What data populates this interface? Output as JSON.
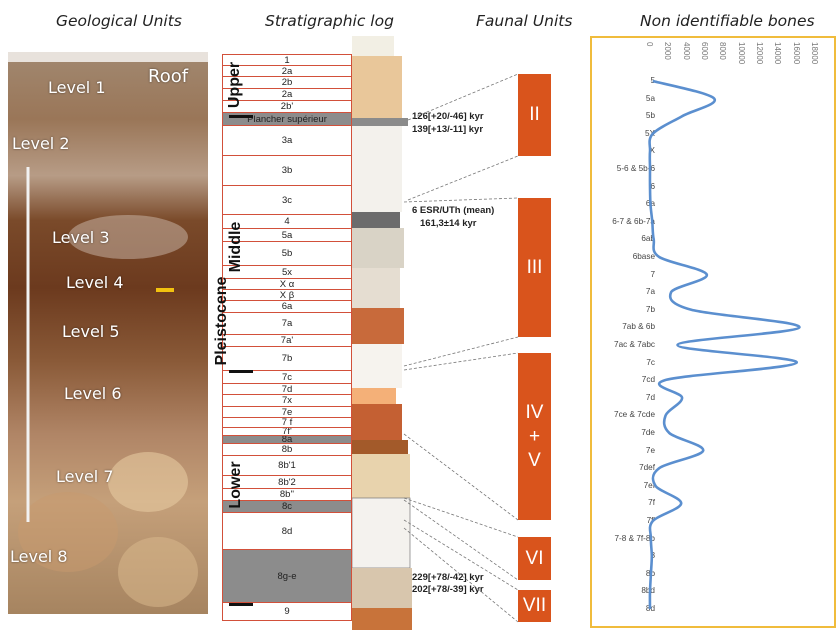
{
  "headers": {
    "geological": "Geological Units",
    "stratigraphic": "Stratigraphic log",
    "faunal": "Faunal Units",
    "bones": "Non identifiable bones"
  },
  "photo_labels": [
    "Level 1",
    "Roof",
    "Level 2",
    "Level 3",
    "Level 4",
    "Level 5",
    "Level 6",
    "Level 7",
    "Level 8"
  ],
  "periods": {
    "era": "Pleistocene",
    "upper": "Upper",
    "middle": "Middle",
    "lower": "Lower"
  },
  "strat_layers": [
    "1",
    "2a",
    "2b",
    "2a",
    "2b'",
    "Plancher supérieur",
    "3a",
    "3b",
    "3c",
    "4",
    "5a",
    "5b",
    "5x",
    "X α",
    "X β",
    "6a",
    "7a",
    "7a'",
    "7b",
    "7c",
    "7d",
    "7x",
    "7e",
    "7 f",
    "7f'",
    "8a",
    "8b",
    "8b'1",
    "8b'2",
    "8b''",
    "8c",
    "8d",
    "8g-e",
    "9"
  ],
  "annotations": {
    "date1": "126[+20/-46] kyr",
    "date2": "139[+13/-11] kyr",
    "esr1": "6 ESR/UTh (mean)",
    "esr2": "161,3±14 kyr",
    "date3": "229[+78/-42] kyr",
    "date4": "202[+78/-39] kyr"
  },
  "faunal_units": [
    {
      "label": "II"
    },
    {
      "label": "III"
    },
    {
      "label": "IV\n+\nV"
    },
    {
      "label": "VI"
    },
    {
      "label": "VII"
    }
  ],
  "colors": {
    "faunal": "#d9541c",
    "chart_line": "#5b8fcf",
    "chart_border": "#f0bc3c",
    "table_border": "#d2503a"
  },
  "chart_data": {
    "type": "line",
    "orientation": "vertical",
    "title": "Non identifiable bones",
    "categories": [
      "5",
      "5a",
      "5b",
      "5X",
      "X",
      "5-6 & 5b-6",
      "6",
      "6a",
      "6-7 & 6b-7a",
      "6ab",
      "6base",
      "7",
      "7a",
      "7b",
      "7ab & 6b",
      "7ac & 7abc",
      "7c",
      "7cd",
      "7d",
      "7ce & 7cde",
      "7de",
      "7e",
      "7def",
      "7ef",
      "7f",
      "7f'",
      "7-8 & 7f-8b",
      "8",
      "8b",
      "8bd",
      "8d"
    ],
    "values": [
      300,
      7000,
      3500,
      300,
      0,
      0,
      0,
      50,
      250,
      400,
      1000,
      6200,
      2300,
      4500,
      16300,
      3000,
      16000,
      1600,
      3500,
      1700,
      2100,
      5800,
      1000,
      600,
      3400,
      300,
      100,
      200,
      100,
      0,
      0
    ],
    "x_ticks": [
      "0",
      "2000",
      "4000",
      "6000",
      "8000",
      "10000",
      "12000",
      "14000",
      "16000",
      "18000"
    ],
    "xlim": [
      0,
      18000
    ],
    "grid": false
  }
}
